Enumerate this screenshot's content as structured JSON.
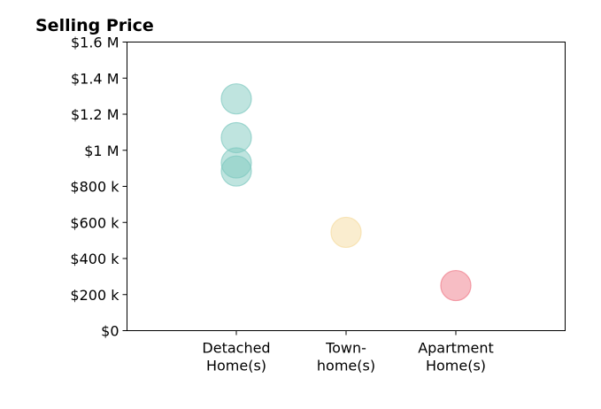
{
  "chart_data": {
    "type": "scatter",
    "title": "Selling Price",
    "xlabel": "",
    "ylabel": "",
    "categories": [
      [
        "Detached",
        "Home(s)"
      ],
      [
        "Town-",
        "home(s)"
      ],
      [
        "Apartment",
        "Home(s)"
      ]
    ],
    "ylim": [
      0,
      1600000
    ],
    "yticks": [
      {
        "value": 0,
        "label": "$0"
      },
      {
        "value": 200000,
        "label": "$200 k"
      },
      {
        "value": 400000,
        "label": "$400 k"
      },
      {
        "value": 600000,
        "label": "$600 k"
      },
      {
        "value": 800000,
        "label": "$800 k"
      },
      {
        "value": 1000000,
        "label": "$1 M"
      },
      {
        "value": 1200000,
        "label": "$1.2 M"
      },
      {
        "value": 1400000,
        "label": "$1.4 M"
      },
      {
        "value": 1600000,
        "label": "$1.6 M"
      }
    ],
    "points": [
      {
        "category": 0,
        "y": 1285000
      },
      {
        "category": 0,
        "y": 1070000
      },
      {
        "category": 0,
        "y": 930000
      },
      {
        "category": 0,
        "y": 885000
      },
      {
        "category": 1,
        "y": 545000
      },
      {
        "category": 2,
        "y": 250000
      }
    ],
    "category_colors": [
      "#7fc9c0",
      "#f5dca0",
      "#f07c8a"
    ],
    "grid": false,
    "legend": "none"
  }
}
